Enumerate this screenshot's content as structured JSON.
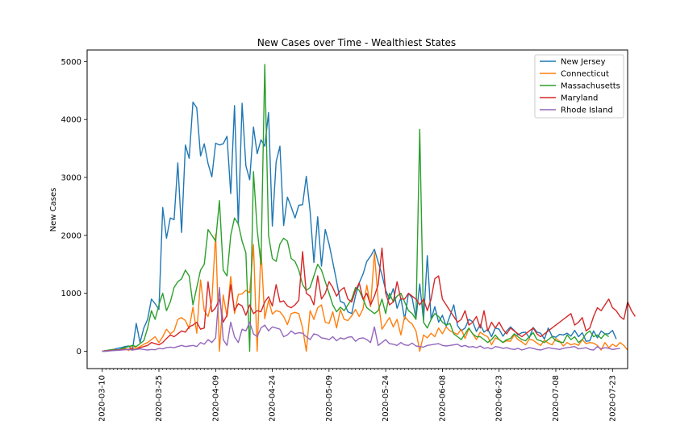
{
  "chart_data": {
    "type": "line",
    "title": "New Cases over Time - Wealthiest States",
    "xlabel": "",
    "ylabel": "New Cases",
    "x_start": "2020-03-10",
    "x_end": "2020-07-23",
    "xticks": [
      "2020-03-10",
      "2020-03-25",
      "2020-04-09",
      "2020-04-24",
      "2020-05-09",
      "2020-05-24",
      "2020-06-08",
      "2020-06-23",
      "2020-07-08",
      "2020-07-23"
    ],
    "yticks": [
      0,
      1000,
      2000,
      3000,
      4000,
      5000
    ],
    "xlim": [
      "2020-03-06",
      "2020-07-27"
    ],
    "ylim": [
      -300,
      5200
    ],
    "grid": false,
    "legend": "top-right",
    "colors": {
      "New Jersey": "#1f77b4",
      "Connecticut": "#ff7f0e",
      "Massachusetts": "#2ca02c",
      "Maryland": "#d62728",
      "Rhode Island": "#9467bd"
    },
    "series": [
      {
        "name": "New Jersey",
        "values": [
          0,
          10,
          20,
          30,
          50,
          60,
          80,
          90,
          20,
          480,
          150,
          400,
          550,
          900,
          820,
          720,
          2480,
          1950,
          2300,
          2270,
          3250,
          2050,
          3560,
          3330,
          4300,
          4200,
          3370,
          3580,
          3240,
          3010,
          3590,
          3560,
          3580,
          3710,
          2720,
          4240,
          2180,
          4280,
          3200,
          2960,
          3870,
          3410,
          3650,
          3540,
          4120,
          2160,
          3270,
          3540,
          2170,
          2660,
          2490,
          2300,
          2520,
          2530,
          3020,
          2420,
          1530,
          2320,
          1470,
          2100,
          1850,
          1540,
          1210,
          860,
          830,
          680,
          650,
          960,
          1180,
          1330,
          1550,
          1640,
          1760,
          1540,
          1320,
          1050,
          900,
          1080,
          740,
          920,
          550,
          1000,
          920,
          560,
          1160,
          530,
          1650,
          550,
          770,
          500,
          620,
          430,
          610,
          800,
          440,
          350,
          400,
          550,
          510,
          340,
          460,
          330,
          380,
          250,
          400,
          380,
          260,
          350,
          420,
          360,
          280,
          320,
          330,
          230,
          410,
          330,
          310,
          210,
          400,
          260,
          240,
          290,
          280,
          310,
          260,
          360,
          250,
          320,
          170,
          180,
          350,
          230,
          350,
          300,
          300,
          360,
          210
        ]
      },
      {
        "name": "Connecticut",
        "values": [
          0,
          0,
          20,
          30,
          20,
          30,
          50,
          10,
          100,
          50,
          80,
          120,
          150,
          200,
          250,
          150,
          250,
          380,
          300,
          350,
          550,
          580,
          530,
          390,
          760,
          310,
          1230,
          700,
          600,
          870,
          2020,
          0,
          970,
          600,
          1290,
          650,
          980,
          990,
          1050,
          1010,
          1840,
          0,
          1770,
          560,
          880,
          640,
          700,
          680,
          600,
          460,
          650,
          670,
          650,
          400,
          0,
          700,
          550,
          750,
          800,
          500,
          480,
          680,
          400,
          720,
          550,
          530,
          610,
          720,
          600,
          730,
          1140,
          770,
          1700,
          880,
          380,
          480,
          580,
          420,
          550,
          280,
          600,
          520,
          470,
          350,
          0,
          280,
          230,
          310,
          250,
          400,
          300,
          420,
          350,
          320,
          290,
          380,
          220,
          390,
          300,
          200,
          330,
          280,
          250,
          110,
          230,
          200,
          150,
          180,
          170,
          280,
          200,
          160,
          110,
          210,
          190,
          140,
          100,
          190,
          140,
          110,
          220,
          170,
          90,
          150,
          110,
          130,
          100,
          200,
          130,
          150,
          140,
          100,
          20,
          150,
          60,
          120,
          80,
          150,
          100,
          20
        ]
      },
      {
        "name": "Massachusetts",
        "values": [
          0,
          10,
          20,
          30,
          20,
          40,
          60,
          80,
          100,
          80,
          130,
          180,
          400,
          700,
          550,
          800,
          1000,
          700,
          850,
          1100,
          1200,
          1250,
          1400,
          1300,
          800,
          1100,
          1400,
          1500,
          2100,
          2000,
          1900,
          2600,
          1400,
          1300,
          2000,
          2300,
          2200,
          1900,
          1700,
          0,
          3100,
          2100,
          1500,
          4950,
          2000,
          1600,
          1550,
          1850,
          1950,
          1900,
          1600,
          1550,
          1400,
          1150,
          1050,
          1100,
          1300,
          1500,
          1400,
          1200,
          1000,
          800,
          680,
          760,
          700,
          800,
          900,
          1100,
          1050,
          900,
          750,
          700,
          650,
          700,
          900,
          650,
          1000,
          850,
          950,
          1000,
          850,
          700,
          650,
          550,
          3830,
          500,
          400,
          550,
          650,
          600,
          500,
          450,
          480,
          300,
          250,
          200,
          300,
          400,
          300,
          250,
          250,
          200,
          150,
          200,
          280,
          200,
          150,
          200,
          220,
          300,
          250,
          200,
          180,
          250,
          320,
          200,
          180,
          150,
          200,
          250,
          180,
          160,
          150,
          280,
          200,
          250,
          150,
          200,
          300,
          350,
          250,
          280,
          220,
          300,
          250
        ]
      },
      {
        "name": "Maryland",
        "values": [
          0,
          5,
          10,
          15,
          20,
          25,
          30,
          35,
          40,
          30,
          60,
          80,
          100,
          150,
          130,
          110,
          150,
          220,
          280,
          250,
          300,
          350,
          330,
          420,
          450,
          500,
          380,
          400,
          1200,
          680,
          750,
          900,
          500,
          620,
          1150,
          700,
          820,
          780,
          620,
          800,
          650,
          700,
          680,
          850,
          940,
          780,
          1150,
          850,
          870,
          780,
          750,
          800,
          880,
          1720,
          1000,
          950,
          800,
          1300,
          900,
          1000,
          1200,
          1100,
          950,
          1050,
          1100,
          900,
          850,
          1050,
          1180,
          900,
          1000,
          800,
          950,
          1150,
          1780,
          1000,
          800,
          850,
          1200,
          900,
          900,
          1000,
          950,
          900,
          800,
          900,
          700,
          900,
          1250,
          1300,
          900,
          800,
          700,
          600,
          500,
          550,
          700,
          450,
          500,
          600,
          400,
          700,
          350,
          500,
          400,
          500,
          380,
          300,
          400,
          350,
          300,
          250,
          300,
          350,
          400,
          300,
          250,
          300,
          350,
          400,
          450,
          500,
          550,
          600,
          650,
          450,
          500,
          580,
          350,
          400,
          600,
          750,
          700,
          800,
          900,
          750,
          700,
          600,
          550,
          850,
          700,
          600
        ]
      },
      {
        "name": "Rhode Island",
        "values": [
          0,
          0,
          5,
          10,
          15,
          20,
          25,
          30,
          20,
          30,
          40,
          30,
          20,
          30,
          25,
          50,
          40,
          60,
          70,
          60,
          80,
          100,
          80,
          90,
          100,
          80,
          150,
          120,
          200,
          150,
          230,
          1100,
          200,
          100,
          500,
          250,
          150,
          380,
          350,
          500,
          300,
          250,
          400,
          450,
          350,
          420,
          400,
          380,
          250,
          280,
          350,
          300,
          320,
          310,
          250,
          200,
          300,
          280,
          230,
          220,
          200,
          250,
          180,
          230,
          210,
          240,
          250,
          170,
          220,
          230,
          200,
          150,
          420,
          100,
          150,
          200,
          130,
          120,
          100,
          150,
          110,
          100,
          140,
          90,
          80,
          70,
          100,
          110,
          120,
          130,
          100,
          90,
          100,
          110,
          120,
          80,
          100,
          70,
          80,
          60,
          90,
          50,
          60,
          40,
          80,
          70,
          50,
          60,
          40,
          30,
          50,
          20,
          40,
          60,
          50,
          30,
          20,
          40,
          60,
          50,
          40,
          30,
          50,
          60,
          70,
          80,
          40,
          50,
          60,
          30,
          20,
          80,
          40,
          60,
          50,
          30,
          40,
          50
        ]
      }
    ]
  }
}
